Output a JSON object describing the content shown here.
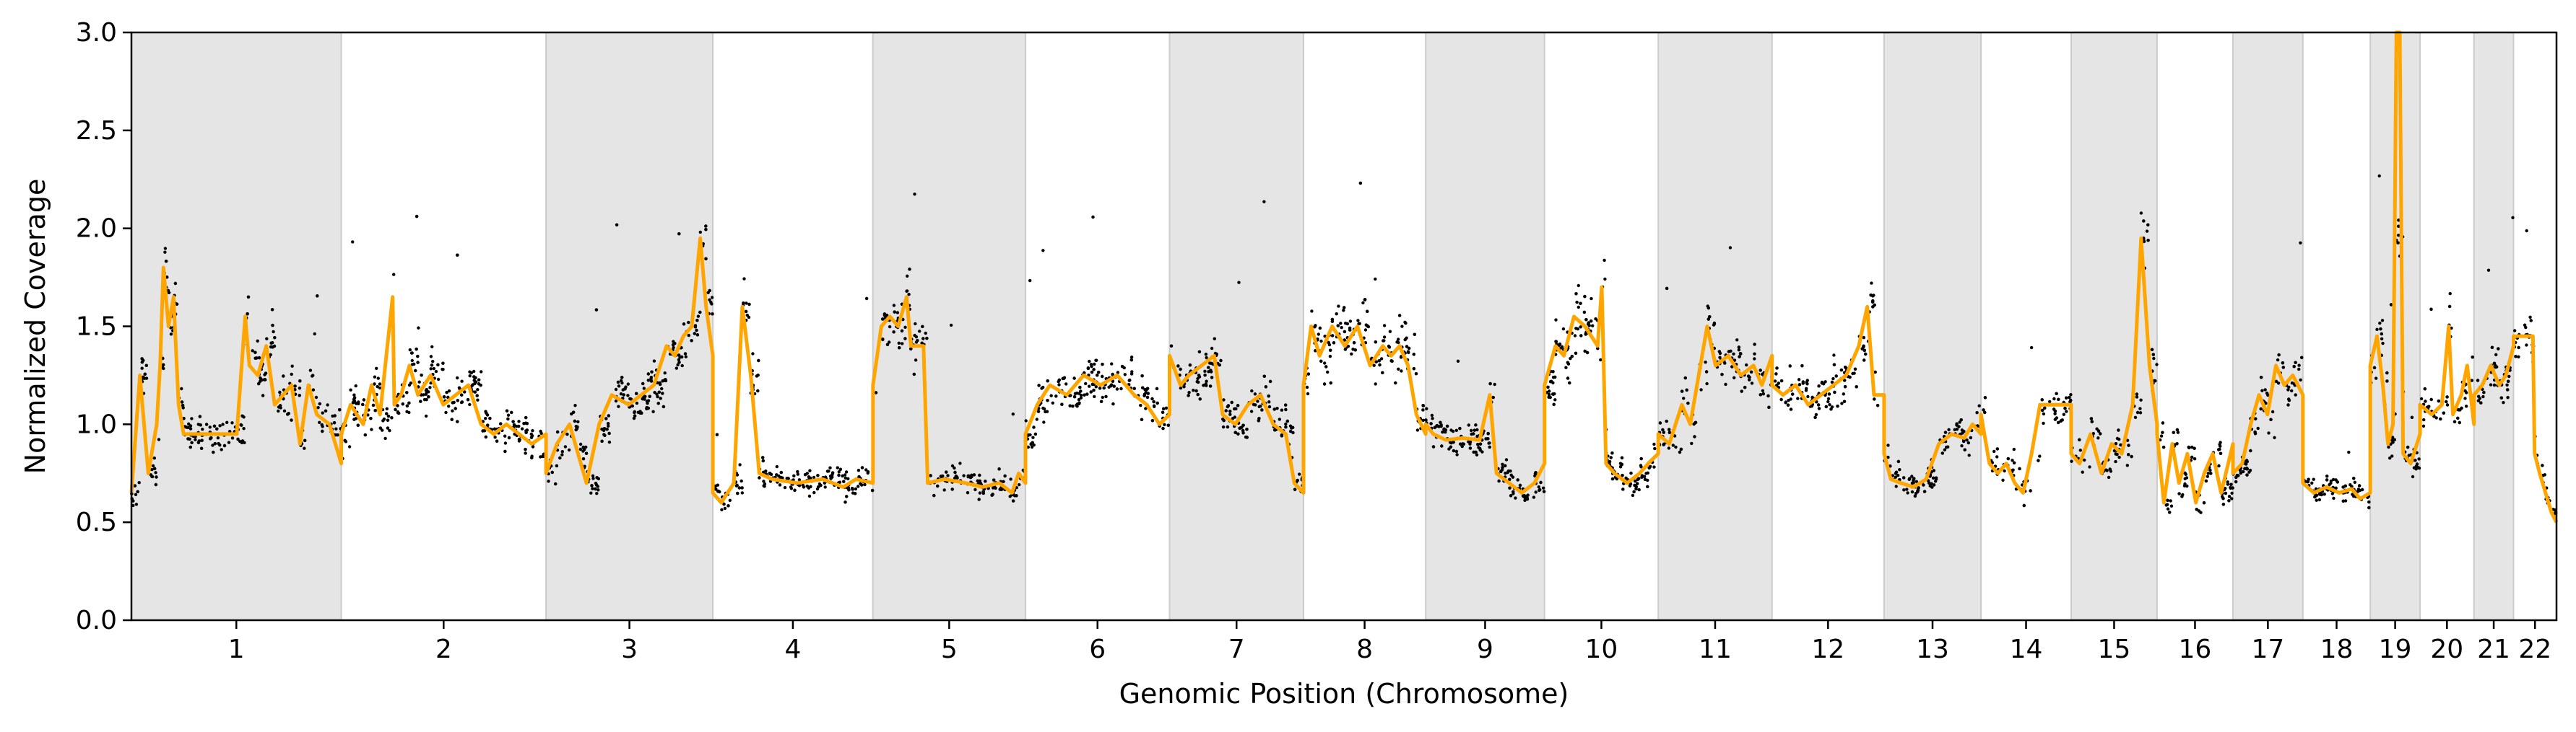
{
  "chart_data": {
    "type": "scatter",
    "title": "",
    "xlabel": "Genomic Position (Chromosome)",
    "ylabel": "Normalized Coverage",
    "ylim": [
      0,
      3
    ],
    "yticks": [
      "0.0",
      "0.5",
      "1.0",
      "1.5",
      "2.0",
      "2.5",
      "3.0"
    ],
    "grid": false,
    "legend": "none",
    "colors": {
      "points": "#000000",
      "segments": "#ffa500",
      "shade": "#e5e5e5",
      "shade_border": "#cccccc"
    },
    "chromosomes": [
      {
        "name": "1",
        "start": 0,
        "end": 249,
        "shaded": true
      },
      {
        "name": "2",
        "start": 249,
        "end": 492,
        "shaded": false
      },
      {
        "name": "3",
        "start": 492,
        "end": 690,
        "shaded": true
      },
      {
        "name": "4",
        "start": 690,
        "end": 880,
        "shaded": false
      },
      {
        "name": "5",
        "start": 880,
        "end": 1061,
        "shaded": true
      },
      {
        "name": "6",
        "start": 1061,
        "end": 1232,
        "shaded": false
      },
      {
        "name": "7",
        "start": 1232,
        "end": 1391,
        "shaded": true
      },
      {
        "name": "8",
        "start": 1391,
        "end": 1536,
        "shaded": false
      },
      {
        "name": "9",
        "start": 1536,
        "end": 1677,
        "shaded": true
      },
      {
        "name": "10",
        "start": 1677,
        "end": 1812,
        "shaded": false
      },
      {
        "name": "11",
        "start": 1812,
        "end": 1947,
        "shaded": true
      },
      {
        "name": "12",
        "start": 1947,
        "end": 2080,
        "shaded": false
      },
      {
        "name": "13",
        "start": 2080,
        "end": 2195,
        "shaded": true
      },
      {
        "name": "14",
        "start": 2195,
        "end": 2302,
        "shaded": false
      },
      {
        "name": "15",
        "start": 2302,
        "end": 2404,
        "shaded": true
      },
      {
        "name": "16",
        "start": 2404,
        "end": 2494,
        "shaded": false
      },
      {
        "name": "17",
        "start": 2494,
        "end": 2577,
        "shaded": true
      },
      {
        "name": "18",
        "start": 2577,
        "end": 2657,
        "shaded": false
      },
      {
        "name": "19",
        "start": 2657,
        "end": 2716,
        "shaded": true
      },
      {
        "name": "20",
        "start": 2716,
        "end": 2780,
        "shaded": false
      },
      {
        "name": "21",
        "start": 2780,
        "end": 2827,
        "shaded": true
      },
      {
        "name": "22",
        "start": 2827,
        "end": 2878,
        "shaded": false
      }
    ],
    "xlim": [
      0,
      2878
    ],
    "series": [
      {
        "type": "line",
        "values": [
          [
            0,
            0.65
          ],
          [
            10,
            1.25
          ],
          [
            20,
            0.75
          ],
          [
            30,
            1.0
          ],
          [
            34,
            1.3
          ],
          [
            38,
            1.8
          ],
          [
            44,
            1.5
          ],
          [
            50,
            1.65
          ],
          [
            56,
            1.1
          ],
          [
            62,
            0.95
          ],
          [
            75,
            0.95
          ],
          [
            100,
            0.95
          ],
          [
            120,
            0.95
          ],
          [
            125,
            0.95
          ],
          [
            135,
            1.55
          ],
          [
            140,
            1.3
          ],
          [
            150,
            1.25
          ],
          [
            160,
            1.4
          ],
          [
            170,
            1.1
          ],
          [
            180,
            1.15
          ],
          [
            190,
            1.2
          ],
          [
            200,
            0.9
          ],
          [
            210,
            1.2
          ],
          [
            220,
            1.05
          ],
          [
            235,
            1.0
          ],
          [
            249,
            0.8
          ],
          [
            249,
            0.95
          ],
          [
            260,
            1.1
          ],
          [
            275,
            1.0
          ],
          [
            285,
            1.2
          ],
          [
            295,
            1.05
          ],
          [
            310,
            1.65
          ],
          [
            312,
            1.1
          ],
          [
            320,
            1.15
          ],
          [
            330,
            1.3
          ],
          [
            340,
            1.15
          ],
          [
            355,
            1.25
          ],
          [
            370,
            1.1
          ],
          [
            385,
            1.15
          ],
          [
            400,
            1.2
          ],
          [
            415,
            1.0
          ],
          [
            430,
            0.95
          ],
          [
            445,
            1.0
          ],
          [
            460,
            0.95
          ],
          [
            475,
            0.9
          ],
          [
            492,
            0.95
          ],
          [
            492,
            0.75
          ],
          [
            505,
            0.9
          ],
          [
            520,
            1.0
          ],
          [
            530,
            0.85
          ],
          [
            540,
            0.7
          ],
          [
            555,
            1.0
          ],
          [
            570,
            1.15
          ],
          [
            590,
            1.1
          ],
          [
            605,
            1.15
          ],
          [
            620,
            1.2
          ],
          [
            635,
            1.4
          ],
          [
            645,
            1.35
          ],
          [
            655,
            1.45
          ],
          [
            665,
            1.5
          ],
          [
            675,
            1.95
          ],
          [
            682,
            1.6
          ],
          [
            690,
            1.35
          ],
          [
            690,
            0.65
          ],
          [
            700,
            0.6
          ],
          [
            715,
            0.7
          ],
          [
            725,
            1.6
          ],
          [
            735,
            1.25
          ],
          [
            745,
            0.75
          ],
          [
            760,
            0.72
          ],
          [
            790,
            0.7
          ],
          [
            820,
            0.72
          ],
          [
            845,
            0.68
          ],
          [
            860,
            0.72
          ],
          [
            880,
            0.7
          ],
          [
            880,
            1.2
          ],
          [
            890,
            1.5
          ],
          [
            900,
            1.55
          ],
          [
            910,
            1.5
          ],
          [
            920,
            1.65
          ],
          [
            925,
            1.4
          ],
          [
            940,
            1.4
          ],
          [
            945,
            0.7
          ],
          [
            965,
            0.72
          ],
          [
            990,
            0.7
          ],
          [
            1010,
            0.68
          ],
          [
            1030,
            0.7
          ],
          [
            1045,
            0.65
          ],
          [
            1053,
            0.75
          ],
          [
            1061,
            0.7
          ],
          [
            1061,
            0.95
          ],
          [
            1075,
            1.1
          ],
          [
            1090,
            1.2
          ],
          [
            1110,
            1.15
          ],
          [
            1130,
            1.25
          ],
          [
            1150,
            1.2
          ],
          [
            1170,
            1.25
          ],
          [
            1190,
            1.15
          ],
          [
            1205,
            1.1
          ],
          [
            1220,
            1.0
          ],
          [
            1232,
            1.05
          ],
          [
            1232,
            1.35
          ],
          [
            1245,
            1.2
          ],
          [
            1255,
            1.25
          ],
          [
            1270,
            1.3
          ],
          [
            1285,
            1.35
          ],
          [
            1295,
            1.05
          ],
          [
            1310,
            1.0
          ],
          [
            1325,
            1.1
          ],
          [
            1340,
            1.15
          ],
          [
            1355,
            1.0
          ],
          [
            1370,
            0.95
          ],
          [
            1380,
            0.7
          ],
          [
            1391,
            0.65
          ],
          [
            1391,
            1.2
          ],
          [
            1400,
            1.5
          ],
          [
            1410,
            1.35
          ],
          [
            1425,
            1.5
          ],
          [
            1440,
            1.4
          ],
          [
            1455,
            1.5
          ],
          [
            1470,
            1.3
          ],
          [
            1485,
            1.4
          ],
          [
            1495,
            1.35
          ],
          [
            1505,
            1.4
          ],
          [
            1515,
            1.3
          ],
          [
            1525,
            1.05
          ],
          [
            1536,
            0.95
          ],
          [
            1536,
            1.0
          ],
          [
            1545,
            0.95
          ],
          [
            1560,
            0.92
          ],
          [
            1580,
            0.93
          ],
          [
            1600,
            0.92
          ],
          [
            1612,
            1.15
          ],
          [
            1620,
            0.75
          ],
          [
            1635,
            0.7
          ],
          [
            1650,
            0.65
          ],
          [
            1665,
            0.7
          ],
          [
            1677,
            0.8
          ],
          [
            1677,
            1.2
          ],
          [
            1690,
            1.4
          ],
          [
            1700,
            1.35
          ],
          [
            1712,
            1.55
          ],
          [
            1725,
            1.5
          ],
          [
            1740,
            1.4
          ],
          [
            1745,
            1.7
          ],
          [
            1750,
            0.8
          ],
          [
            1760,
            0.75
          ],
          [
            1775,
            0.7
          ],
          [
            1790,
            0.75
          ],
          [
            1800,
            0.8
          ],
          [
            1812,
            0.85
          ],
          [
            1812,
            0.95
          ],
          [
            1825,
            0.9
          ],
          [
            1840,
            1.1
          ],
          [
            1850,
            1.0
          ],
          [
            1860,
            1.25
          ],
          [
            1870,
            1.5
          ],
          [
            1880,
            1.3
          ],
          [
            1895,
            1.35
          ],
          [
            1910,
            1.25
          ],
          [
            1925,
            1.3
          ],
          [
            1935,
            1.2
          ],
          [
            1947,
            1.35
          ],
          [
            1947,
            1.2
          ],
          [
            1960,
            1.15
          ],
          [
            1975,
            1.2
          ],
          [
            1990,
            1.1
          ],
          [
            2005,
            1.15
          ],
          [
            2020,
            1.2
          ],
          [
            2035,
            1.25
          ],
          [
            2050,
            1.4
          ],
          [
            2060,
            1.6
          ],
          [
            2068,
            1.15
          ],
          [
            2080,
            1.15
          ],
          [
            2080,
            0.85
          ],
          [
            2088,
            0.72
          ],
          [
            2100,
            0.7
          ],
          [
            2115,
            0.68
          ],
          [
            2130,
            0.72
          ],
          [
            2145,
            0.9
          ],
          [
            2160,
            0.95
          ],
          [
            2175,
            0.93
          ],
          [
            2185,
            1.0
          ],
          [
            2195,
            0.95
          ],
          [
            2195,
            1.05
          ],
          [
            2205,
            0.8
          ],
          [
            2215,
            0.75
          ],
          [
            2225,
            0.8
          ],
          [
            2235,
            0.7
          ],
          [
            2245,
            0.65
          ],
          [
            2255,
            0.85
          ],
          [
            2265,
            1.1
          ],
          [
            2280,
            1.1
          ],
          [
            2295,
            1.1
          ],
          [
            2302,
            1.1
          ],
          [
            2302,
            0.85
          ],
          [
            2312,
            0.8
          ],
          [
            2325,
            0.95
          ],
          [
            2338,
            0.75
          ],
          [
            2350,
            0.9
          ],
          [
            2362,
            0.85
          ],
          [
            2375,
            1.1
          ],
          [
            2385,
            1.95
          ],
          [
            2395,
            1.3
          ],
          [
            2404,
            1.0
          ],
          [
            2404,
            0.95
          ],
          [
            2412,
            0.6
          ],
          [
            2422,
            0.9
          ],
          [
            2430,
            0.7
          ],
          [
            2440,
            0.85
          ],
          [
            2450,
            0.6
          ],
          [
            2460,
            0.75
          ],
          [
            2470,
            0.85
          ],
          [
            2480,
            0.65
          ],
          [
            2494,
            0.9
          ],
          [
            2494,
            0.75
          ],
          [
            2505,
            0.8
          ],
          [
            2515,
            1.0
          ],
          [
            2525,
            1.15
          ],
          [
            2535,
            1.05
          ],
          [
            2545,
            1.3
          ],
          [
            2555,
            1.2
          ],
          [
            2565,
            1.25
          ],
          [
            2577,
            1.15
          ],
          [
            2577,
            0.7
          ],
          [
            2590,
            0.65
          ],
          [
            2605,
            0.68
          ],
          [
            2620,
            0.65
          ],
          [
            2635,
            0.67
          ],
          [
            2645,
            0.62
          ],
          [
            2657,
            0.65
          ],
          [
            2657,
            1.3
          ],
          [
            2665,
            1.45
          ],
          [
            2672,
            1.2
          ],
          [
            2678,
            0.9
          ],
          [
            2684,
            1.0
          ],
          [
            2688,
            3.0
          ],
          [
            2692,
            3.0
          ],
          [
            2696,
            0.85
          ],
          [
            2705,
            0.8
          ],
          [
            2716,
            0.95
          ],
          [
            2716,
            1.1
          ],
          [
            2730,
            1.05
          ],
          [
            2742,
            1.1
          ],
          [
            2750,
            1.5
          ],
          [
            2755,
            1.05
          ],
          [
            2765,
            1.15
          ],
          [
            2772,
            1.3
          ],
          [
            2780,
            1.0
          ],
          [
            2780,
            1.15
          ],
          [
            2790,
            1.2
          ],
          [
            2800,
            1.3
          ],
          [
            2810,
            1.2
          ],
          [
            2818,
            1.25
          ],
          [
            2827,
            1.4
          ],
          [
            2827,
            1.45
          ],
          [
            2840,
            1.45
          ],
          [
            2850,
            1.45
          ],
          [
            2852,
            0.85
          ],
          [
            2858,
            0.75
          ],
          [
            2865,
            0.65
          ],
          [
            2872,
            0.55
          ],
          [
            2878,
            0.5
          ]
        ]
      }
    ]
  }
}
